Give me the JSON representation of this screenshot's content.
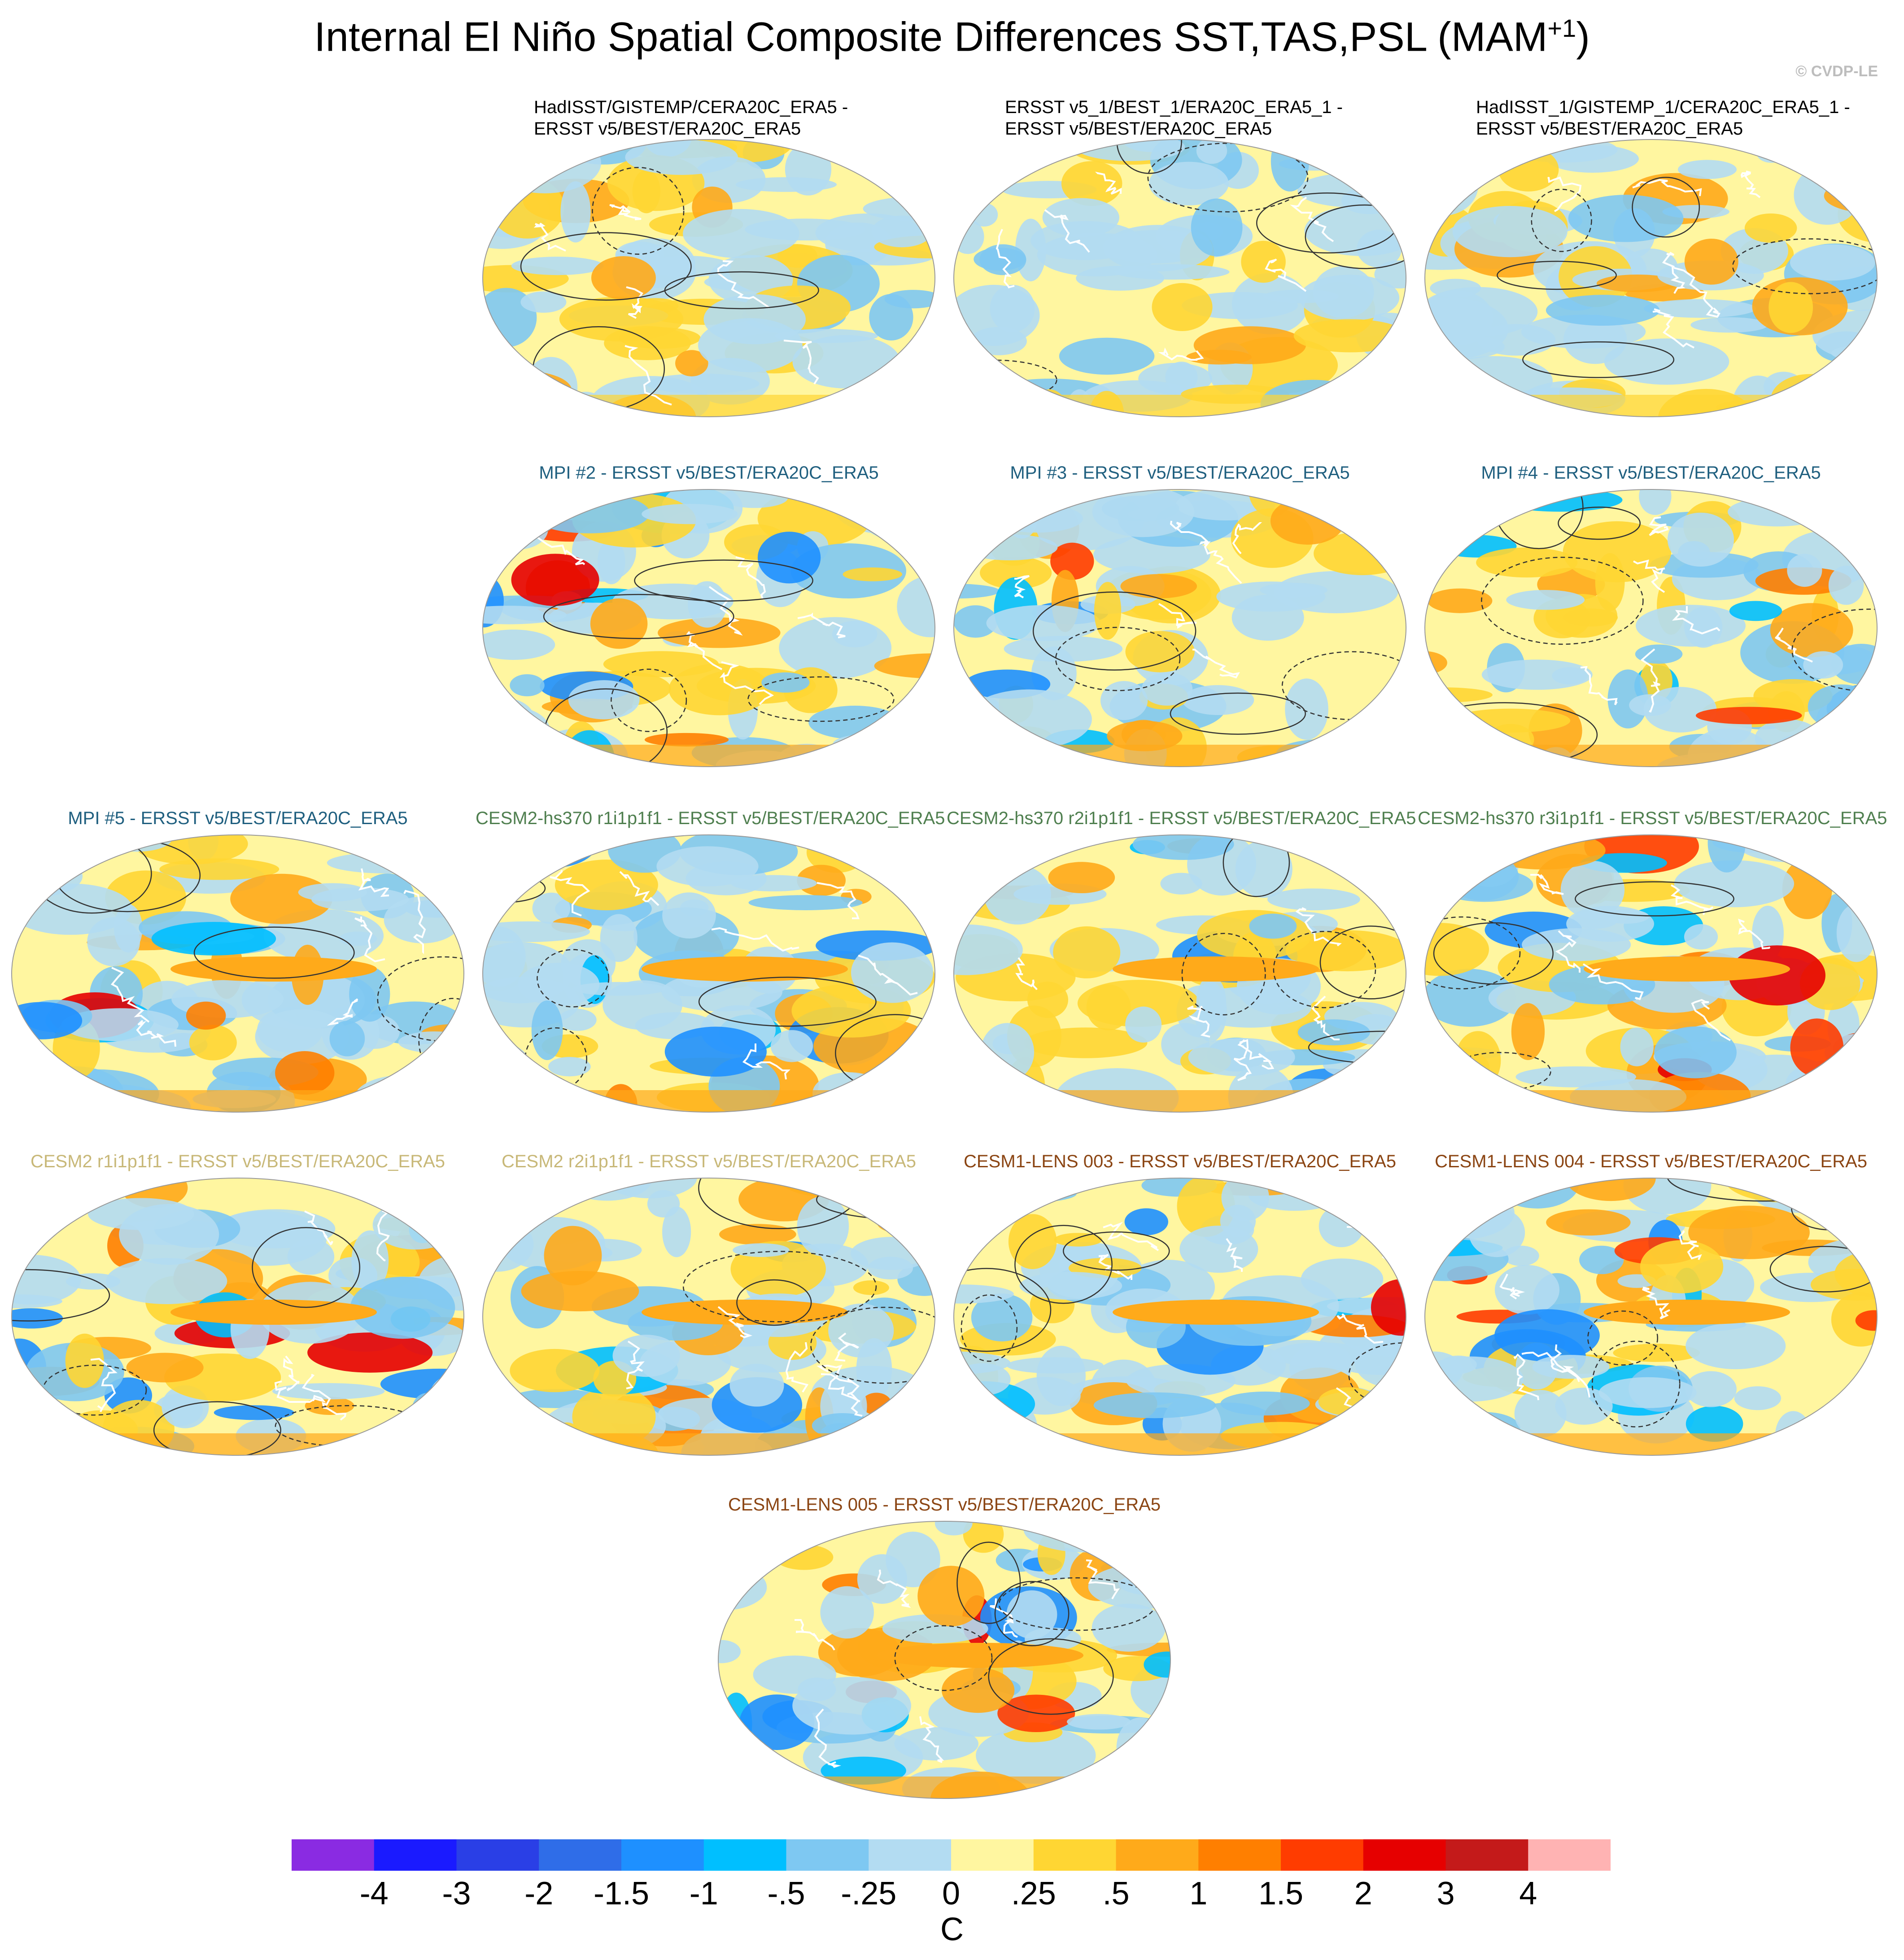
{
  "title": "Internal El Niño Spatial Composite Differences SST,TAS,PSL (MAM",
  "title_superscript": "+1",
  "title_close": ")",
  "credit": "© CVDP-LE",
  "colors": {
    "land_outline": "#ffffff",
    "contour": "#333333",
    "palette": [
      "#8a2be2",
      "#1a1aff",
      "#2a3fe6",
      "#2f6de8",
      "#1e90ff",
      "#00bfff",
      "#7ec8f2",
      "#b3dcf2",
      "#fff6a0",
      "#ffd633",
      "#ffaa1a",
      "#ff7f00",
      "#ff3c00",
      "#e60000",
      "#c41a1a",
      "#ffb3b3"
    ]
  },
  "panels": [
    {
      "line1": "HadISST/GISTEMP/CERA20C_ERA5 -",
      "line2": "ERSST v5/BEST/ERA20C_ERA5",
      "color": "#000000",
      "pattern": 1
    },
    {
      "line1": "ERSST v5_1/BEST_1/ERA20C_ERA5_1 -",
      "line2": "ERSST v5/BEST/ERA20C_ERA5",
      "color": "#000000",
      "pattern": 2
    },
    {
      "line1": "HadISST_1/GISTEMP_1/CERA20C_ERA5_1 -",
      "line2": "ERSST v5/BEST/ERA20C_ERA5",
      "color": "#000000",
      "pattern": 3
    },
    {
      "line1": "MPI #2 - ERSST v5/BEST/ERA20C_ERA5",
      "line2": "",
      "color": "#1f5f7f",
      "pattern": 4
    },
    {
      "line1": "MPI #3 - ERSST v5/BEST/ERA20C_ERA5",
      "line2": "",
      "color": "#1f5f7f",
      "pattern": 5
    },
    {
      "line1": "MPI #4 - ERSST v5/BEST/ERA20C_ERA5",
      "line2": "",
      "color": "#1f5f7f",
      "pattern": 6
    },
    {
      "line1": "MPI #5 - ERSST v5/BEST/ERA20C_ERA5",
      "line2": "",
      "color": "#1f5f7f",
      "pattern": 7
    },
    {
      "line1": "CESM2-hs370 r1i1p1f1 - ERSST v5/BEST/ERA20C_ERA5",
      "line2": "",
      "color": "#4f7f4f",
      "pattern": 8
    },
    {
      "line1": "CESM2-hs370 r2i1p1f1 - ERSST v5/BEST/ERA20C_ERA5",
      "line2": "",
      "color": "#4f7f4f",
      "pattern": 9
    },
    {
      "line1": "CESM2-hs370 r3i1p1f1 - ERSST v5/BEST/ERA20C_ERA5",
      "line2": "",
      "color": "#4f7f4f",
      "pattern": 10
    },
    {
      "line1": "CESM2 r1i1p1f1 - ERSST v5/BEST/ERA20C_ERA5",
      "line2": "",
      "color": "#c8b878",
      "pattern": 11
    },
    {
      "line1": "CESM2 r2i1p1f1 - ERSST v5/BEST/ERA20C_ERA5",
      "line2": "",
      "color": "#c8b878",
      "pattern": 12
    },
    {
      "line1": "CESM1-LENS 003 - ERSST v5/BEST/ERA20C_ERA5",
      "line2": "",
      "color": "#8b4513",
      "pattern": 13
    },
    {
      "line1": "CESM1-LENS 004 - ERSST v5/BEST/ERA20C_ERA5",
      "line2": "",
      "color": "#8b4513",
      "pattern": 14
    },
    {
      "line1": "CESM1-LENS 005 - ERSST v5/BEST/ERA20C_ERA5",
      "line2": "",
      "color": "#8b4513",
      "pattern": 15
    }
  ],
  "colorbar": {
    "ticks": [
      "-4",
      "-3",
      "-2",
      "-1.5",
      "-1",
      "-.5",
      "-.25",
      "0",
      ".25",
      ".5",
      "1",
      "1.5",
      "2",
      "3",
      "4"
    ],
    "units": "C"
  }
}
